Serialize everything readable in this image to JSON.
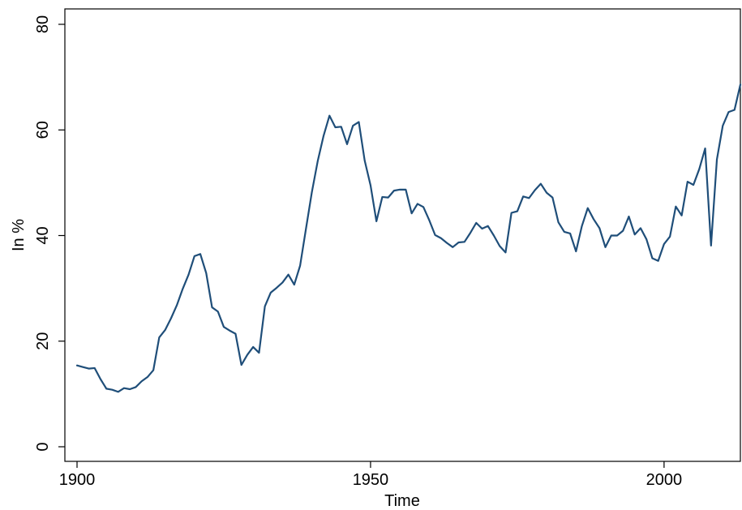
{
  "chart_data": {
    "type": "line",
    "title": "",
    "xlabel": "Time",
    "ylabel": "In %",
    "xlim": [
      1900,
      2013
    ],
    "ylim": [
      0,
      80
    ],
    "xticks": [
      1900,
      1950,
      2000
    ],
    "yticks": [
      0,
      20,
      40,
      60,
      80
    ],
    "grid": false,
    "legend": "none",
    "colors": {
      "line": "#1f4e79",
      "axis": "#000000",
      "background": "#ffffff"
    },
    "series": [
      {
        "x": [
          1900,
          1901,
          1902,
          1903,
          1904,
          1905,
          1906,
          1907,
          1908,
          1909,
          1910,
          1911,
          1912,
          1913,
          1914,
          1915,
          1916,
          1917,
          1918,
          1919,
          1920,
          1921,
          1922,
          1923,
          1924,
          1925,
          1926,
          1927,
          1928,
          1929,
          1930,
          1931,
          1932,
          1933,
          1934,
          1935,
          1936,
          1937,
          1938,
          1939,
          1940,
          1941,
          1942,
          1943,
          1944,
          1945,
          1946,
          1947,
          1948,
          1949,
          1950,
          1951,
          1952,
          1953,
          1954,
          1955,
          1956,
          1957,
          1958,
          1959,
          1960,
          1961,
          1962,
          1963,
          1964,
          1965,
          1966,
          1967,
          1968,
          1969,
          1970,
          1971,
          1972,
          1973,
          1974,
          1975,
          1976,
          1977,
          1978,
          1979,
          1980,
          1981,
          1982,
          1983,
          1984,
          1985,
          1986,
          1987,
          1988,
          1989,
          1990,
          1991,
          1992,
          1993,
          1994,
          1995,
          1996,
          1997,
          1998,
          1999,
          2000,
          2001,
          2002,
          2003,
          2004,
          2005,
          2006,
          2007,
          2008,
          2009,
          2010,
          2011,
          2012,
          2013
        ],
        "y": [
          15.4,
          15.1,
          14.8,
          14.9,
          12.8,
          11.0,
          10.8,
          10.4,
          11.1,
          10.9,
          11.3,
          12.4,
          13.2,
          14.5,
          20.7,
          22.1,
          24.3,
          26.8,
          29.9,
          32.6,
          36.1,
          36.5,
          32.9,
          26.4,
          25.6,
          22.7,
          22.0,
          21.4,
          15.5,
          17.4,
          18.9,
          17.8,
          26.6,
          29.2,
          30.1,
          31.1,
          32.6,
          30.7,
          34.3,
          41.3,
          48.2,
          54.1,
          58.9,
          62.7,
          60.5,
          60.6,
          57.3,
          60.8,
          61.5,
          54.2,
          49.5,
          42.7,
          47.3,
          47.2,
          48.5,
          48.7,
          48.7,
          44.2,
          46.0,
          45.4,
          42.9,
          40.1,
          39.5,
          38.6,
          37.8,
          38.7,
          38.8,
          40.5,
          42.4,
          41.3,
          41.8,
          40.0,
          38.0,
          36.8,
          44.3,
          44.6,
          47.4,
          47.1,
          48.6,
          49.8,
          48.1,
          47.2,
          42.5,
          40.7,
          40.4,
          37.0,
          41.8,
          45.2,
          43.1,
          41.4,
          37.8,
          40.0,
          40.0,
          40.9,
          43.6,
          40.2,
          41.4,
          39.3,
          35.7,
          35.2,
          38.4,
          39.8,
          45.5,
          43.8,
          50.2,
          49.6,
          52.6,
          56.5,
          38.1,
          54.4,
          60.8,
          63.4,
          63.8,
          68.6
        ]
      }
    ]
  }
}
